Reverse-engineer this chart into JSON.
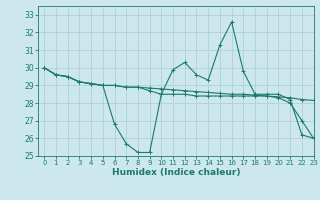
{
  "xlabel": "Humidex (Indice chaleur)",
  "xlim": [
    -0.5,
    23
  ],
  "ylim": [
    25,
    33.5
  ],
  "yticks": [
    25,
    26,
    27,
    28,
    29,
    30,
    31,
    32,
    33
  ],
  "xticks": [
    0,
    1,
    2,
    3,
    4,
    5,
    6,
    7,
    8,
    9,
    10,
    11,
    12,
    13,
    14,
    15,
    16,
    17,
    18,
    19,
    20,
    21,
    22,
    23
  ],
  "bg_color": "#cce8ed",
  "grid_color": "#b0cfd8",
  "line_color": "#1a7a6e",
  "series": [
    [
      30.0,
      29.6,
      29.5,
      29.2,
      29.1,
      29.0,
      26.8,
      25.7,
      25.2,
      25.2,
      28.5,
      29.9,
      30.3,
      29.6,
      29.3,
      31.3,
      32.6,
      29.8,
      28.5,
      28.5,
      28.5,
      28.2,
      26.2,
      26.0
    ],
    [
      30.0,
      29.6,
      29.5,
      29.2,
      29.1,
      29.0,
      29.0,
      28.9,
      28.9,
      28.85,
      28.8,
      28.75,
      28.7,
      28.65,
      28.6,
      28.55,
      28.5,
      28.5,
      28.45,
      28.4,
      28.35,
      28.3,
      28.2,
      28.15
    ],
    [
      30.0,
      29.6,
      29.5,
      29.2,
      29.1,
      29.0,
      29.0,
      28.9,
      28.9,
      28.7,
      28.5,
      28.5,
      28.5,
      28.4,
      28.4,
      28.4,
      28.4,
      28.4,
      28.4,
      28.4,
      28.3,
      28.0,
      27.0,
      26.0
    ]
  ]
}
